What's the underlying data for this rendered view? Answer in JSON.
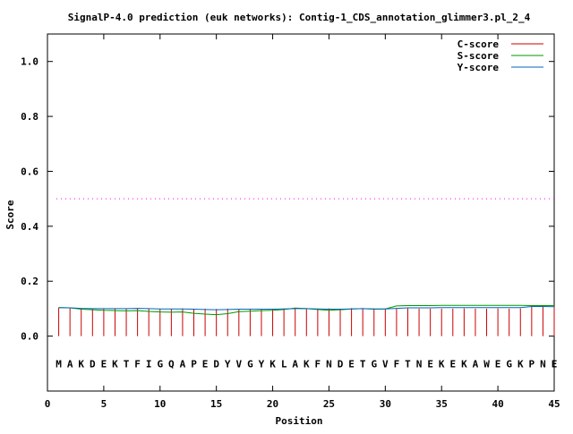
{
  "chart_data": {
    "type": "line",
    "title": "SignalP-4.0 prediction (euk networks): Contig-1_CDS_annotation_glimmer3.pl_2_4",
    "xlabel": "Position",
    "ylabel": "Score",
    "xlim": [
      0,
      45
    ],
    "ylim": [
      -0.2,
      1.1
    ],
    "xticks": [
      "0",
      "5",
      "10",
      "15",
      "20",
      "25",
      "30",
      "35",
      "40",
      "45"
    ],
    "yticks": [
      "0.0",
      "0.2",
      "0.4",
      "0.6",
      "0.8",
      "1.0"
    ],
    "grid": false,
    "legend_position": "top-right",
    "threshold": {
      "value": 0.5,
      "color": "#ff00ff",
      "style": "dotted"
    },
    "sequence": [
      "M",
      "A",
      "K",
      "D",
      "E",
      "K",
      "T",
      "F",
      "I",
      "G",
      "Q",
      "A",
      "P",
      "E",
      "D",
      "Y",
      "V",
      "G",
      "Y",
      "K",
      "L",
      "A",
      "K",
      "F",
      "N",
      "D",
      "E",
      "T",
      "G",
      "V",
      "F",
      "T",
      "N",
      "E",
      "K",
      "E",
      "K",
      "A",
      "W",
      "E",
      "G",
      "K",
      "P",
      "N",
      "E"
    ],
    "series": [
      {
        "name": "C-score",
        "color": "#cc0000",
        "render": "impulses",
        "values": [
          0.104,
          0.102,
          0.101,
          0.1,
          0.1,
          0.101,
          0.1,
          0.102,
          0.101,
          0.1,
          0.1,
          0.101,
          0.1,
          0.1,
          0.099,
          0.1,
          0.099,
          0.1,
          0.099,
          0.1,
          0.101,
          0.1,
          0.099,
          0.1,
          0.101,
          0.1,
          0.102,
          0.1,
          0.101,
          0.1,
          0.1,
          0.101,
          0.1,
          0.1,
          0.1,
          0.1,
          0.101,
          0.1,
          0.1,
          0.101,
          0.1,
          0.101,
          0.11,
          0.109,
          0.108
        ]
      },
      {
        "name": "S-score",
        "color": "#009900",
        "render": "line",
        "values": [
          0.104,
          0.103,
          0.098,
          0.096,
          0.094,
          0.093,
          0.092,
          0.093,
          0.09,
          0.088,
          0.087,
          0.088,
          0.083,
          0.08,
          0.078,
          0.082,
          0.089,
          0.091,
          0.093,
          0.094,
          0.097,
          0.102,
          0.1,
          0.097,
          0.094,
          0.096,
          0.099,
          0.1,
          0.098,
          0.099,
          0.11,
          0.111,
          0.111,
          0.111,
          0.112,
          0.112,
          0.112,
          0.112,
          0.112,
          0.112,
          0.112,
          0.112,
          0.111,
          0.111,
          0.111
        ]
      },
      {
        "name": "Y-score",
        "color": "#0066bb",
        "render": "line",
        "values": [
          0.104,
          0.103,
          0.101,
          0.1,
          0.1,
          0.1,
          0.1,
          0.101,
          0.1,
          0.099,
          0.099,
          0.099,
          0.098,
          0.097,
          0.096,
          0.097,
          0.098,
          0.098,
          0.098,
          0.098,
          0.099,
          0.1,
          0.1,
          0.099,
          0.098,
          0.098,
          0.099,
          0.1,
          0.099,
          0.099,
          0.101,
          0.103,
          0.103,
          0.103,
          0.104,
          0.104,
          0.104,
          0.104,
          0.104,
          0.104,
          0.104,
          0.104,
          0.108,
          0.108,
          0.107
        ]
      }
    ]
  }
}
